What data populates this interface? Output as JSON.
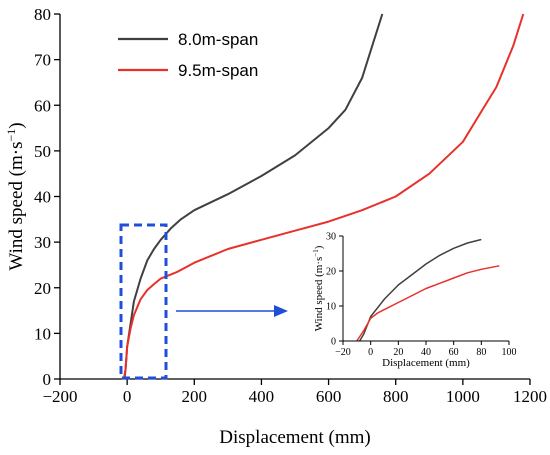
{
  "chart_data": [
    {
      "type": "line",
      "role": "main",
      "xlabel": "Displacement (mm)",
      "ylabel_base": "Wind speed (m·s",
      "ylabel_sup": "−1",
      "ylabel_end": ")",
      "xlim": [
        -200,
        1200
      ],
      "ylim": [
        0,
        80
      ],
      "xticks": [
        -200,
        0,
        200,
        400,
        600,
        800,
        1000,
        1200
      ],
      "xtick_labels": [
        "−200",
        "0",
        "200",
        "400",
        "600",
        "800",
        "1000",
        "1200"
      ],
      "yticks": [
        0,
        10,
        20,
        30,
        40,
        50,
        60,
        70,
        80
      ],
      "ytick_labels": [
        "0",
        "10",
        "20",
        "30",
        "40",
        "50",
        "60",
        "70",
        "80"
      ],
      "grid": false,
      "legend_position": "top-left",
      "series": [
        {
          "name": "8.0m-span",
          "color": "#404040",
          "points": [
            [
              -8,
              0
            ],
            [
              -5,
              2
            ],
            [
              -2,
              5
            ],
            [
              0,
              7
            ],
            [
              10,
              12
            ],
            [
              20,
              17
            ],
            [
              40,
              22
            ],
            [
              60,
              26
            ],
            [
              80,
              28.5
            ],
            [
              100,
              30.5
            ],
            [
              130,
              33
            ],
            [
              160,
              35
            ],
            [
              200,
              37
            ],
            [
              300,
              40.5
            ],
            [
              400,
              44.5
            ],
            [
              500,
              49
            ],
            [
              600,
              55
            ],
            [
              650,
              59
            ],
            [
              700,
              66
            ],
            [
              730,
              73
            ],
            [
              760,
              80
            ]
          ]
        },
        {
          "name": "9.5m-span",
          "color": "#e8312b",
          "points": [
            [
              -10,
              0
            ],
            [
              -5,
              2
            ],
            [
              -2,
              5
            ],
            [
              0,
              7
            ],
            [
              10,
              11
            ],
            [
              20,
              14
            ],
            [
              40,
              17.5
            ],
            [
              60,
              19.5
            ],
            [
              80,
              20.8
            ],
            [
              100,
              22
            ],
            [
              150,
              23.5
            ],
            [
              200,
              25.5
            ],
            [
              300,
              28.5
            ],
            [
              400,
              30.5
            ],
            [
              500,
              32.5
            ],
            [
              600,
              34.5
            ],
            [
              700,
              37
            ],
            [
              800,
              40
            ],
            [
              900,
              45
            ],
            [
              1000,
              52
            ],
            [
              1050,
              58
            ],
            [
              1100,
              64
            ],
            [
              1150,
              73
            ],
            [
              1180,
              80
            ]
          ]
        }
      ]
    },
    {
      "type": "line",
      "role": "inset",
      "xlabel": "Displacement (mm)",
      "ylabel_base": "Wind speed (m·s",
      "ylabel_sup": "−1",
      "ylabel_end": ")",
      "xlim": [
        -20,
        100
      ],
      "ylim": [
        0,
        30
      ],
      "xticks": [
        -20,
        0,
        20,
        40,
        60,
        80,
        100
      ],
      "xtick_labels": [
        "−20",
        "0",
        "20",
        "40",
        "60",
        "80",
        "100"
      ],
      "yticks": [
        0,
        10,
        20,
        30
      ],
      "ytick_labels": [
        "0",
        "10",
        "20",
        "30"
      ],
      "grid": false,
      "series": [
        {
          "name": "8.0m-span",
          "color": "#404040",
          "points": [
            [
              -8,
              0
            ],
            [
              -5,
              2
            ],
            [
              0,
              7
            ],
            [
              10,
              12
            ],
            [
              20,
              16
            ],
            [
              30,
              19
            ],
            [
              40,
              22
            ],
            [
              50,
              24.5
            ],
            [
              60,
              26.5
            ],
            [
              70,
              28
            ],
            [
              80,
              29
            ]
          ]
        },
        {
          "name": "9.5m-span",
          "color": "#e8312b",
          "points": [
            [
              -10,
              0
            ],
            [
              -5,
              3
            ],
            [
              0,
              6.5
            ],
            [
              5,
              8
            ],
            [
              20,
              11
            ],
            [
              30,
              13
            ],
            [
              40,
              15
            ],
            [
              50,
              16.5
            ],
            [
              60,
              18
            ],
            [
              70,
              19.5
            ],
            [
              80,
              20.5
            ],
            [
              93,
              21.5
            ]
          ]
        }
      ]
    }
  ]
}
